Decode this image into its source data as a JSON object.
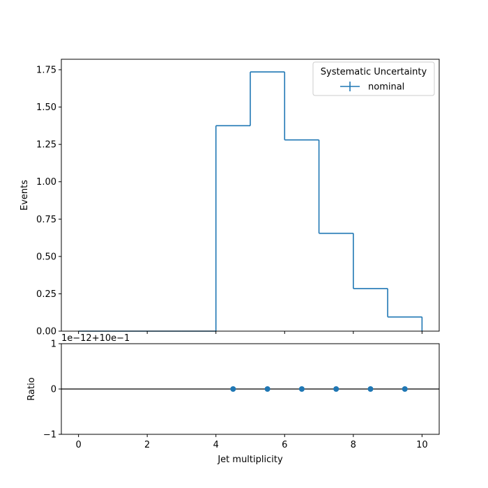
{
  "chart_data": [
    {
      "type": "step",
      "xlabel": "",
      "ylabel": "Events",
      "xlim": [
        -0.5,
        10.5
      ],
      "ylim": [
        0.0,
        1.82
      ],
      "yticks": [
        0.0,
        0.25,
        0.5,
        0.75,
        1.0,
        1.25,
        1.5,
        1.75
      ],
      "ytick_labels": [
        "0.00",
        "0.25",
        "0.50",
        "0.75",
        "1.00",
        "1.25",
        "1.50",
        "1.75"
      ],
      "xticks": [
        0,
        2,
        4,
        6,
        8,
        10
      ],
      "bin_edges": [
        0,
        1,
        2,
        3,
        4,
        5,
        6,
        7,
        8,
        9,
        10
      ],
      "series": [
        {
          "name": "nominal",
          "color": "#1f77b4",
          "values": [
            0.0,
            0.0,
            0.0,
            0.0,
            1.375,
            1.735,
            1.28,
            0.655,
            0.285,
            0.095
          ]
        }
      ],
      "legend": {
        "title": "Systematic Uncertainty",
        "placement": "top-right",
        "entries": [
          "nominal"
        ]
      },
      "grid": false
    },
    {
      "type": "scatter",
      "xlabel": "Jet multiplicity",
      "ylabel": "Ratio",
      "xlim": [
        -0.5,
        10.5
      ],
      "ylim": [
        -1,
        1
      ],
      "yticks": [
        -1,
        0,
        1
      ],
      "ytick_labels": [
        "−1",
        "0",
        "1"
      ],
      "xticks": [
        0,
        2,
        4,
        6,
        8,
        10
      ],
      "xtick_labels": [
        "0",
        "2",
        "4",
        "6",
        "8",
        "10"
      ],
      "offset_text": "1e−12+10e−1",
      "reference_line": 0,
      "series": [
        {
          "name": "",
          "color": "#1f77b4",
          "x": [
            4.5,
            5.5,
            6.5,
            7.5,
            8.5,
            9.5
          ],
          "y": [
            0,
            0,
            0,
            0,
            0,
            0
          ]
        }
      ],
      "grid": false
    }
  ]
}
